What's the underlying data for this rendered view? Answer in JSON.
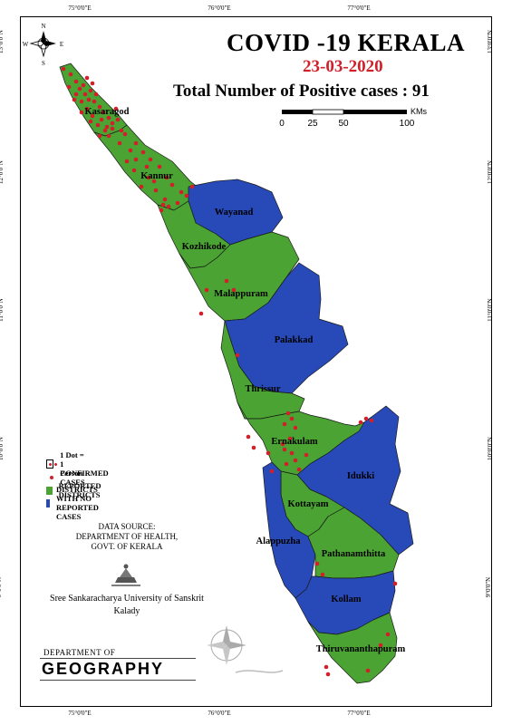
{
  "map": {
    "title": "COVID -19 KERALA",
    "date": "23-03-2020",
    "total_cases": "Total Number of Positive cases : 91",
    "scale_bar": {
      "ticks": [
        "0",
        "25",
        "50",
        "100"
      ],
      "unit": "KMs"
    },
    "north_arrow": {
      "n": "N",
      "s": "S",
      "e": "E",
      "w": "W"
    },
    "graticule": {
      "longitudes": [
        "75°0'0\"E",
        "76°0'0\"E",
        "77°0'0\"E"
      ],
      "latitudes": [
        "13°0'0\"N",
        "12°0'0\"N",
        "11°0'0\"N",
        "10°0'0\"N",
        "9°0'0\"N"
      ]
    },
    "districts": [
      {
        "name": "Kasaragod",
        "status": "reported"
      },
      {
        "name": "Kannur",
        "status": "reported"
      },
      {
        "name": "Wayanad",
        "status": "none"
      },
      {
        "name": "Kozhikode",
        "status": "reported"
      },
      {
        "name": "Malappuram",
        "status": "reported"
      },
      {
        "name": "Palakkad",
        "status": "none"
      },
      {
        "name": "Thrissur",
        "status": "reported"
      },
      {
        "name": "Ernakulam",
        "status": "reported"
      },
      {
        "name": "Idukki",
        "status": "none"
      },
      {
        "name": "Kottayam",
        "status": "reported"
      },
      {
        "name": "Alappuzha",
        "status": "none"
      },
      {
        "name": "Pathanamthitta",
        "status": "reported"
      },
      {
        "name": "Kollam",
        "status": "none"
      },
      {
        "name": "Thiruvananthapuram",
        "status": "reported"
      }
    ],
    "colors": {
      "reported": "#4aa332",
      "none": "#2849b8",
      "dot": "#d0202a",
      "title_date": "#d0202a"
    }
  },
  "legend": {
    "dot_scale": "1 Dot = 1 Person",
    "confirmed": "CONFIRMED CASES",
    "reported": "REPORTED DISTRICTS",
    "no_reported": "DISTRICTS WITH NO REPORTED CASES"
  },
  "source": {
    "line1": "DATA SOURCE:",
    "line2": "DEPARTMENT OF HEALTH,",
    "line3": "GOVT. OF KERALA"
  },
  "credits": {
    "university": "Sree Sankaracharya University of Sanskrit",
    "place": "Kalady",
    "dept_top": "DEPARTMENT OF",
    "dept_main": "GEOGRAPHY"
  }
}
